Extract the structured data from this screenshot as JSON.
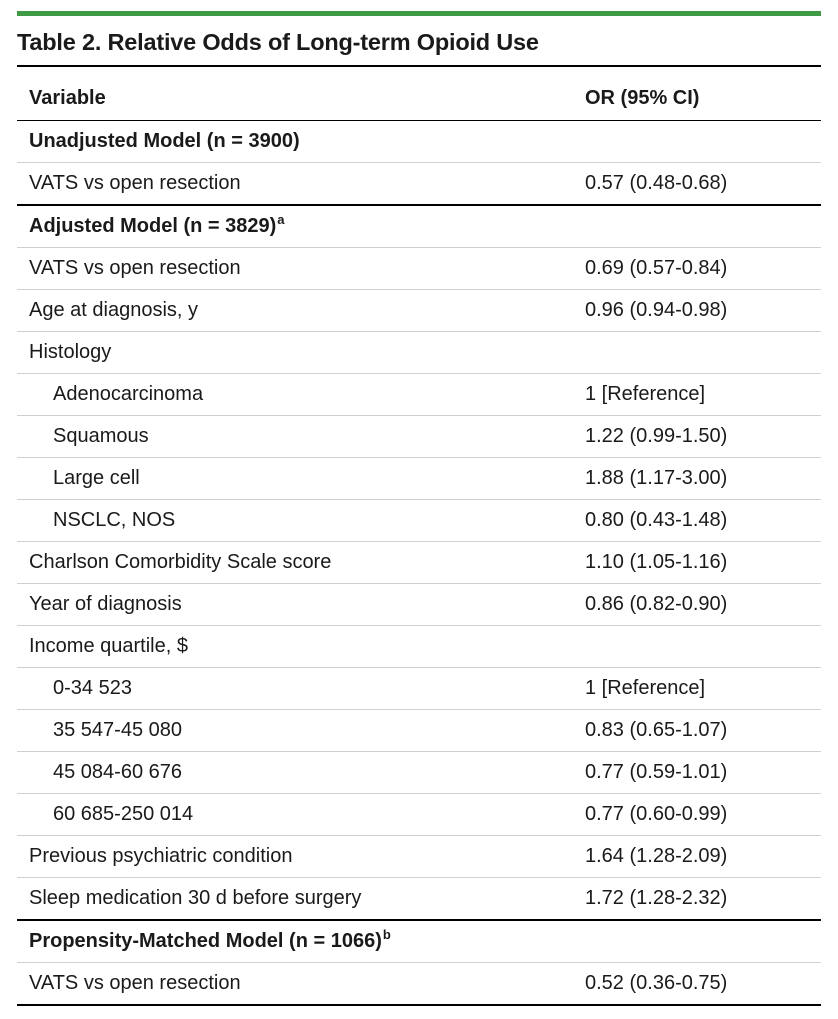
{
  "title": "Table 2. Relative Odds of Long-term Opioid Use",
  "headers": {
    "variable": "Variable",
    "or": "OR (95% CI)"
  },
  "rows": [
    {
      "label": "Unadjusted Model (n = 3900)",
      "value": "",
      "sup": ""
    },
    {
      "label": "VATS vs open resection",
      "value": "0.57 (0.48-0.68)"
    },
    {
      "label": "Adjusted Model (n = 3829)",
      "value": "",
      "sup": "a"
    },
    {
      "label": "VATS vs open resection",
      "value": "0.69 (0.57-0.84)"
    },
    {
      "label": "Age at diagnosis, y",
      "value": "0.96 (0.94-0.98)"
    },
    {
      "label": "Histology",
      "value": ""
    },
    {
      "label": "Adenocarcinoma",
      "value": "1 [Reference]"
    },
    {
      "label": "Squamous",
      "value": "1.22 (0.99-1.50)"
    },
    {
      "label": "Large cell",
      "value": "1.88 (1.17-3.00)"
    },
    {
      "label": "NSCLC, NOS",
      "value": "0.80 (0.43-1.48)"
    },
    {
      "label": "Charlson Comorbidity Scale score",
      "value": "1.10 (1.05-1.16)"
    },
    {
      "label": "Year of diagnosis",
      "value": "0.86 (0.82-0.90)"
    },
    {
      "label": "Income quartile, $",
      "value": ""
    },
    {
      "label": "0-34 523",
      "value": "1 [Reference]"
    },
    {
      "label": "35 547-45 080",
      "value": "0.83 (0.65-1.07)"
    },
    {
      "label": "45 084-60 676",
      "value": "0.77 (0.59-1.01)"
    },
    {
      "label": "60 685-250 014",
      "value": "0.77 (0.60-0.99)"
    },
    {
      "label": "Previous psychiatric condition",
      "value": "1.64 (1.28-2.09)"
    },
    {
      "label": "Sleep medication 30 d before surgery",
      "value": "1.72 (1.28-2.32)"
    },
    {
      "label": "Propensity-Matched Model (n = 1066)",
      "value": "",
      "sup": "b"
    },
    {
      "label": "VATS vs open resection",
      "value": "0.52 (0.36-0.75)"
    }
  ],
  "colors": {
    "accent": "#3f9a45",
    "rule": "#000000",
    "divider": "#cfcfcf"
  }
}
